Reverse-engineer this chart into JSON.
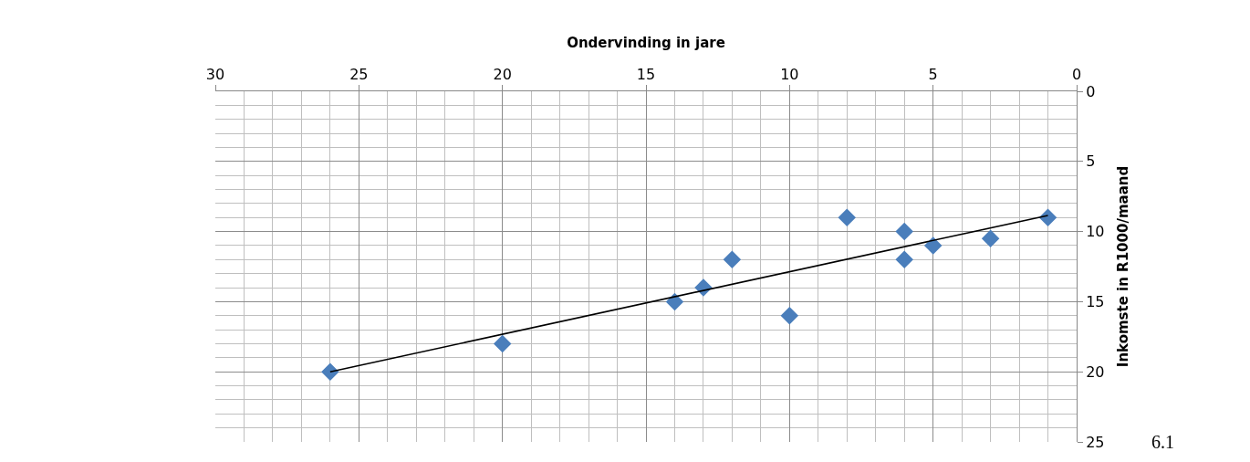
{
  "chart_data": {
    "type": "scatter",
    "xlabel": "Ondervinding in jare",
    "ylabel": "Inkomste in R1000/maand",
    "xlim": [
      30,
      0
    ],
    "ylim": [
      25,
      0
    ],
    "xticks": [
      0,
      5,
      10,
      15,
      20,
      25,
      30
    ],
    "yticks": [
      0,
      5,
      10,
      15,
      20,
      25
    ],
    "grid": true,
    "marker": "diamond",
    "series": [
      {
        "color": "#4a7ebb",
        "x": [
          1,
          3,
          5,
          6,
          6,
          8,
          10,
          12,
          13,
          14,
          20,
          26
        ],
        "values": [
          9,
          10.5,
          11,
          10,
          12,
          9,
          16,
          12,
          14,
          15,
          18,
          20
        ]
      },
      {
        "type": "line",
        "color": "#000000",
        "line_style": "solid",
        "marker": "none",
        "x": [
          1,
          26
        ],
        "values": [
          8.85,
          20
        ]
      }
    ],
    "annotations": [
      "6.1"
    ]
  }
}
